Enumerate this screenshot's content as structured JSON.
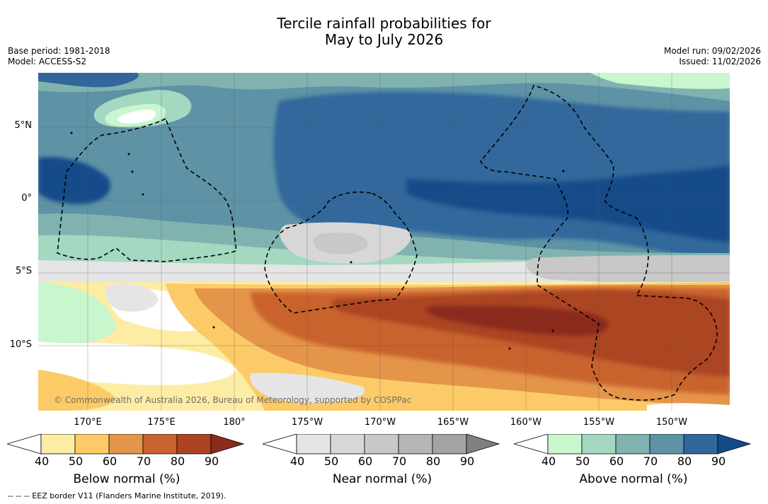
{
  "title": {
    "line1": "Tercile rainfall probabilities for",
    "line2": "May to July 2026"
  },
  "meta_left": {
    "base_period": "Base period: 1981-2018",
    "model": "Model: ACCESS-S2"
  },
  "meta_right": {
    "model_run": "Model run: 09/02/2026",
    "issued": "Issued: 11/02/2026"
  },
  "map": {
    "latitude_labels": [
      "5°N",
      "0°",
      "5°S",
      "10°S"
    ],
    "longitude_labels": [
      "170°E",
      "175°E",
      "180°",
      "175°W",
      "170°W",
      "165°W",
      "160°W",
      "155°W",
      "150°W"
    ],
    "copyright": "© Commonwealth of Australia 2026, Bureau of Meteorology, supported by COSPPac",
    "lat_range": [
      -14,
      8.5
    ],
    "lon_range": [
      167,
      214.3
    ],
    "land_color": "#ffffff",
    "eez_line_color": "#000000"
  },
  "colorbars": [
    {
      "label": "Below normal (%)",
      "ticks": [
        "40",
        "50",
        "60",
        "70",
        "80",
        "90"
      ],
      "colors": [
        "#ffffff",
        "#fdeca4",
        "#fccb67",
        "#e4954a",
        "#c9632e",
        "#ac4424",
        "#8a2c1b"
      ]
    },
    {
      "label": "Near normal (%)",
      "ticks": [
        "40",
        "50",
        "60",
        "70",
        "80",
        "90"
      ],
      "colors": [
        "#ffffff",
        "#e5e5e5",
        "#d7d7d7",
        "#c8c8c8",
        "#b5b5b5",
        "#a3a3a3",
        "#808080"
      ]
    },
    {
      "label": "Above normal (%)",
      "ticks": [
        "40",
        "50",
        "60",
        "70",
        "80",
        "90"
      ],
      "colors": [
        "#ffffff",
        "#c8f6cd",
        "#a4d8c0",
        "#80b3af",
        "#5e93a6",
        "#31679b",
        "#134c8a"
      ]
    }
  ],
  "footnote": "--  --  -- EEZ border V11 (Flanders Marine Institute, 2019)."
}
